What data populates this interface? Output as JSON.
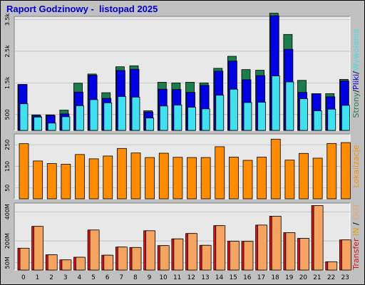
{
  "title": "Raport Godzinowy -  listopad 2025",
  "colors": {
    "background": "#c0c0c0",
    "panel": "#e8e8e8",
    "title": "#0000cc",
    "strony": "#1c7c4c",
    "pliki": "#0000e0",
    "wywolania": "#40e0f0",
    "lokalizacje": "#ff8c00",
    "transfer_in": "#e01010",
    "transfer_out": "#f4a460",
    "legend_out": "#e8a000"
  },
  "chart_data": [
    {
      "type": "bar",
      "categories": [
        "0",
        "1",
        "2",
        "3",
        "4",
        "5",
        "6",
        "7",
        "8",
        "9",
        "10",
        "11",
        "12",
        "13",
        "14",
        "15",
        "16",
        "17",
        "18",
        "19",
        "20",
        "21",
        "22",
        "23"
      ],
      "ylim": [
        0,
        3600
      ],
      "yticks": [
        {
          "v": 500,
          "label": "500"
        },
        {
          "v": 1500,
          "label": "1.5k"
        },
        {
          "v": 2500,
          "label": "2.5k"
        },
        {
          "v": 3500,
          "label": "3.5k"
        }
      ],
      "side_label": [
        {
          "text": "Strony",
          "color": "#1c7c4c"
        },
        {
          "text": "/",
          "color": "#000000"
        },
        {
          "text": "Pliki",
          "color": "#0000e0"
        },
        {
          "text": "/",
          "color": "#000000"
        },
        {
          "text": "Wywolania",
          "color": "#40e0f0"
        }
      ],
      "series": [
        {
          "key": "strony",
          "values": [
            1450,
            490,
            490,
            640,
            1490,
            1780,
            1190,
            2010,
            2040,
            620,
            1520,
            1500,
            1520,
            1500,
            1960,
            2340,
            1920,
            1900,
            3700,
            3030,
            1580,
            1160,
            1160,
            1610
          ]
        },
        {
          "key": "pliki",
          "values": [
            1450,
            460,
            470,
            520,
            1210,
            1740,
            1010,
            1890,
            1930,
            580,
            1300,
            1290,
            1200,
            1420,
            1870,
            2190,
            1600,
            1730,
            3620,
            2560,
            1200,
            1160,
            1060,
            1560
          ]
        },
        {
          "key": "wywolania",
          "values": [
            840,
            420,
            230,
            430,
            780,
            970,
            870,
            1070,
            1050,
            390,
            770,
            800,
            730,
            680,
            1110,
            1300,
            880,
            890,
            1720,
            1530,
            1000,
            620,
            670,
            790
          ]
        }
      ]
    },
    {
      "type": "bar",
      "categories": [
        "0",
        "1",
        "2",
        "3",
        "4",
        "5",
        "6",
        "7",
        "8",
        "9",
        "10",
        "11",
        "12",
        "13",
        "14",
        "15",
        "16",
        "17",
        "18",
        "19",
        "20",
        "21",
        "22",
        "23"
      ],
      "ylim": [
        0,
        300
      ],
      "yticks": [
        {
          "v": 50,
          "label": "50"
        },
        {
          "v": 150,
          "label": "150"
        },
        {
          "v": 250,
          "label": "250"
        }
      ],
      "side_label": [
        {
          "text": "Lokalizacje",
          "color": "#ff8c00"
        }
      ],
      "series": [
        {
          "key": "lokalizacje",
          "values": [
            255,
            175,
            163,
            160,
            205,
            185,
            198,
            233,
            212,
            191,
            211,
            192,
            191,
            191,
            241,
            193,
            178,
            193,
            276,
            179,
            210,
            188,
            256,
            260
          ]
        }
      ]
    },
    {
      "type": "bar",
      "categories": [
        "0",
        "1",
        "2",
        "3",
        "4",
        "5",
        "6",
        "7",
        "8",
        "9",
        "10",
        "11",
        "12",
        "13",
        "14",
        "15",
        "16",
        "17",
        "18",
        "19",
        "20",
        "21",
        "22",
        "23"
      ],
      "ylim": [
        0,
        460
      ],
      "yticks": [
        {
          "v": 50,
          "label": "50M"
        },
        {
          "v": 200,
          "label": "200M"
        },
        {
          "v": 400,
          "label": "400M"
        }
      ],
      "side_label": [
        {
          "text": "Transfer",
          "color": "#e01010"
        },
        {
          "text": " IN",
          "color": "#e8a000"
        },
        {
          "text": " / ",
          "color": "#000000"
        },
        {
          "text": "OUT",
          "color": "#f4a460"
        }
      ],
      "series": [
        {
          "key": "transfer_in",
          "values": [
            150,
            300,
            105,
            70,
            88,
            275,
            102,
            158,
            155,
            270,
            168,
            214,
            251,
            170,
            305,
            198,
            197,
            309,
            370,
            257,
            218,
            443,
            57,
            207
          ]
        },
        {
          "key": "transfer_out",
          "values": [
            150,
            300,
            105,
            70,
            88,
            275,
            102,
            158,
            155,
            270,
            168,
            214,
            251,
            170,
            305,
            198,
            197,
            309,
            370,
            257,
            218,
            443,
            57,
            207
          ]
        }
      ]
    }
  ]
}
